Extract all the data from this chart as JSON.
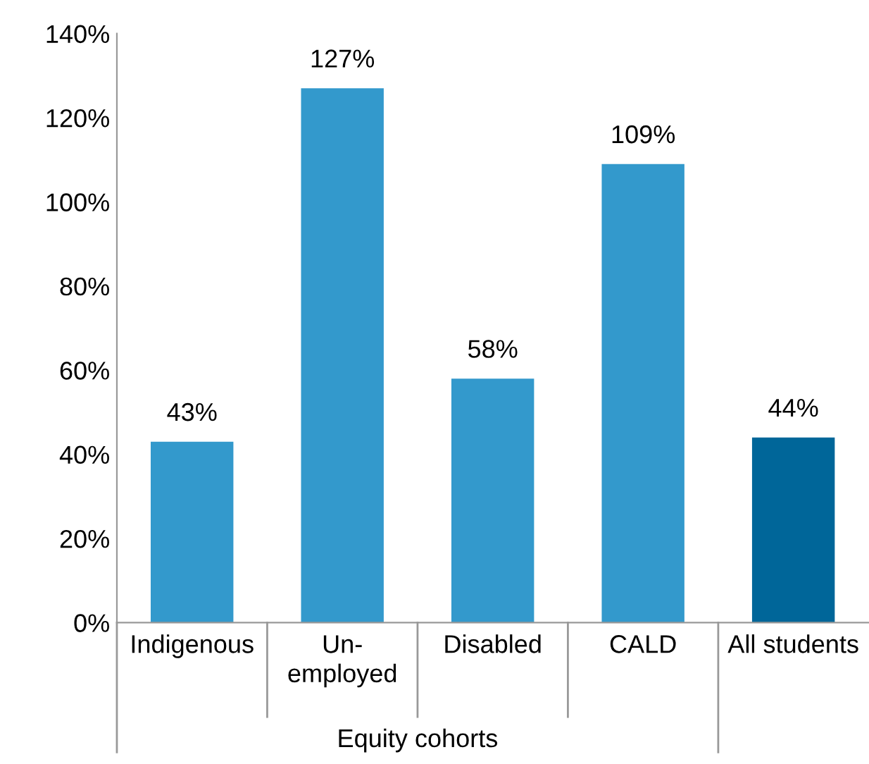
{
  "chart_data": {
    "type": "bar",
    "categories": [
      "Indigenous",
      "Un-\nemployed",
      "Disabled",
      "CALD",
      "All students"
    ],
    "values": [
      43,
      127,
      58,
      109,
      44
    ],
    "colors": [
      "#3399cc",
      "#3399cc",
      "#3399cc",
      "#3399cc",
      "#006699"
    ],
    "value_labels": [
      "43%",
      "127%",
      "58%",
      "109%",
      "44%"
    ],
    "ylim": [
      0,
      140
    ],
    "yticks": [
      {
        "value": 0,
        "label": "0%"
      },
      {
        "value": 20,
        "label": "20%"
      },
      {
        "value": 40,
        "label": "40%"
      },
      {
        "value": 60,
        "label": "60%"
      },
      {
        "value": 80,
        "label": "80%"
      },
      {
        "value": 100,
        "label": "100%"
      },
      {
        "value": 120,
        "label": "120%"
      },
      {
        "value": 140,
        "label": "140%"
      }
    ],
    "annotations": [
      "Equity cohorts"
    ],
    "grid": false,
    "legend": false
  }
}
